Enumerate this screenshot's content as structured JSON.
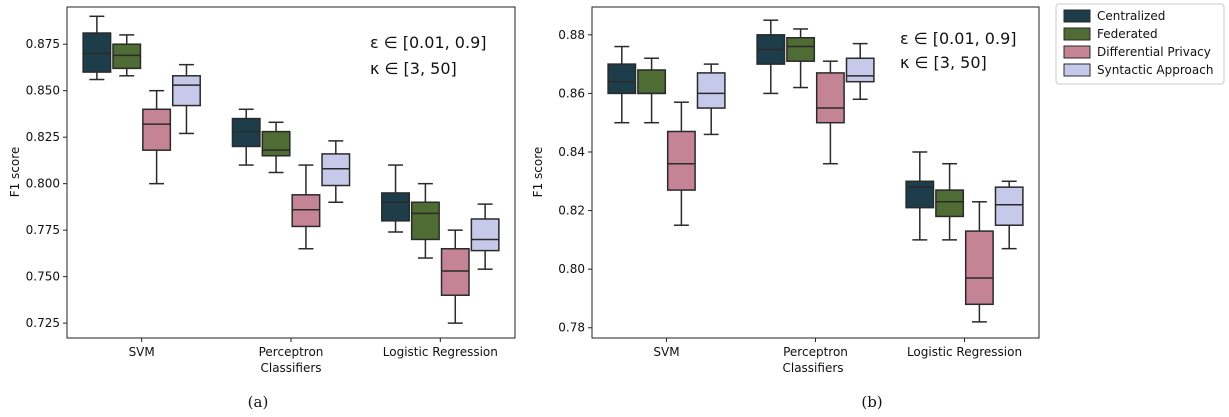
{
  "chart_data": [
    {
      "type": "box",
      "caption": "(a)",
      "xlabel": "Classifiers",
      "ylabel": "F1 score",
      "ylim": [
        0.717,
        0.895
      ],
      "yticks": [
        0.725,
        0.75,
        0.775,
        0.8,
        0.825,
        0.85,
        0.875
      ],
      "ytick_labels": [
        "0.725",
        "0.750",
        "0.775",
        "0.800",
        "0.825",
        "0.850",
        "0.875"
      ],
      "categories": [
        "SVM",
        "Perceptron",
        "Logistic Regression"
      ],
      "annotations": [
        "ε  ∈ [0.01, 0.9]",
        "κ  ∈ [3, 50]"
      ],
      "series": [
        {
          "name": "Centralized",
          "color": "#1d3d4b",
          "boxes": [
            {
              "whislo": 0.856,
              "q1": 0.86,
              "med": 0.87,
              "q3": 0.881,
              "whishi": 0.89
            },
            {
              "whislo": 0.81,
              "q1": 0.82,
              "med": 0.828,
              "q3": 0.835,
              "whishi": 0.84
            },
            {
              "whislo": 0.774,
              "q1": 0.78,
              "med": 0.79,
              "q3": 0.795,
              "whishi": 0.81
            }
          ]
        },
        {
          "name": "Federated",
          "color": "#4e6c34",
          "boxes": [
            {
              "whislo": 0.858,
              "q1": 0.862,
              "med": 0.869,
              "q3": 0.875,
              "whishi": 0.88
            },
            {
              "whislo": 0.806,
              "q1": 0.815,
              "med": 0.818,
              "q3": 0.828,
              "whishi": 0.833
            },
            {
              "whislo": 0.76,
              "q1": 0.77,
              "med": 0.784,
              "q3": 0.79,
              "whishi": 0.8
            }
          ]
        },
        {
          "name": "Differential Privacy",
          "color": "#c48496",
          "boxes": [
            {
              "whislo": 0.8,
              "q1": 0.818,
              "med": 0.832,
              "q3": 0.84,
              "whishi": 0.85
            },
            {
              "whislo": 0.765,
              "q1": 0.777,
              "med": 0.786,
              "q3": 0.794,
              "whishi": 0.81
            },
            {
              "whislo": 0.725,
              "q1": 0.74,
              "med": 0.753,
              "q3": 0.765,
              "whishi": 0.775
            }
          ]
        },
        {
          "name": "Syntactic Approach",
          "color": "#c7c9ea",
          "boxes": [
            {
              "whislo": 0.827,
              "q1": 0.842,
              "med": 0.853,
              "q3": 0.858,
              "whishi": 0.864
            },
            {
              "whislo": 0.79,
              "q1": 0.799,
              "med": 0.808,
              "q3": 0.816,
              "whishi": 0.823
            },
            {
              "whislo": 0.754,
              "q1": 0.764,
              "med": 0.77,
              "q3": 0.781,
              "whishi": 0.789
            }
          ]
        }
      ]
    },
    {
      "type": "box",
      "caption": "(b)",
      "xlabel": "Classifiers",
      "ylabel": "F1 score",
      "ylim": [
        0.7765,
        0.8895
      ],
      "yticks": [
        0.78,
        0.8,
        0.82,
        0.84,
        0.86,
        0.88
      ],
      "ytick_labels": [
        "0.78",
        "0.80",
        "0.82",
        "0.84",
        "0.86",
        "0.88"
      ],
      "categories": [
        "SVM",
        "Perceptron",
        "Logistic Regression"
      ],
      "annotations": [
        "ε  ∈ [0.01, 0.9]",
        "κ  ∈ [3, 50]"
      ],
      "series": [
        {
          "name": "Centralized",
          "color": "#1d3d4b",
          "boxes": [
            {
              "whislo": 0.85,
              "q1": 0.86,
              "med": 0.864,
              "q3": 0.87,
              "whishi": 0.876
            },
            {
              "whislo": 0.86,
              "q1": 0.87,
              "med": 0.875,
              "q3": 0.88,
              "whishi": 0.885
            },
            {
              "whislo": 0.81,
              "q1": 0.821,
              "med": 0.828,
              "q3": 0.83,
              "whishi": 0.84
            }
          ]
        },
        {
          "name": "Federated",
          "color": "#4e6c34",
          "boxes": [
            {
              "whislo": 0.85,
              "q1": 0.86,
              "med": 0.86,
              "q3": 0.868,
              "whishi": 0.872
            },
            {
              "whislo": 0.862,
              "q1": 0.871,
              "med": 0.876,
              "q3": 0.879,
              "whishi": 0.882
            },
            {
              "whislo": 0.81,
              "q1": 0.818,
              "med": 0.823,
              "q3": 0.827,
              "whishi": 0.836
            }
          ]
        },
        {
          "name": "Differential Privacy",
          "color": "#c48496",
          "boxes": [
            {
              "whislo": 0.815,
              "q1": 0.827,
              "med": 0.836,
              "q3": 0.847,
              "whishi": 0.857
            },
            {
              "whislo": 0.836,
              "q1": 0.85,
              "med": 0.855,
              "q3": 0.867,
              "whishi": 0.871
            },
            {
              "whislo": 0.782,
              "q1": 0.788,
              "med": 0.797,
              "q3": 0.813,
              "whishi": 0.823
            }
          ]
        },
        {
          "name": "Syntactic Approach",
          "color": "#c7c9ea",
          "boxes": [
            {
              "whislo": 0.846,
              "q1": 0.855,
              "med": 0.86,
              "q3": 0.867,
              "whishi": 0.87
            },
            {
              "whislo": 0.858,
              "q1": 0.864,
              "med": 0.866,
              "q3": 0.872,
              "whishi": 0.877
            },
            {
              "whislo": 0.807,
              "q1": 0.815,
              "med": 0.822,
              "q3": 0.828,
              "whishi": 0.83
            }
          ]
        }
      ]
    }
  ],
  "legend": {
    "placement": "right",
    "entries": [
      {
        "label": "Centralized",
        "color": "#1d3d4b"
      },
      {
        "label": "Federated",
        "color": "#4e6c34"
      },
      {
        "label": "Differential Privacy",
        "color": "#c48496"
      },
      {
        "label": "Syntactic Approach",
        "color": "#c7c9ea"
      }
    ]
  }
}
